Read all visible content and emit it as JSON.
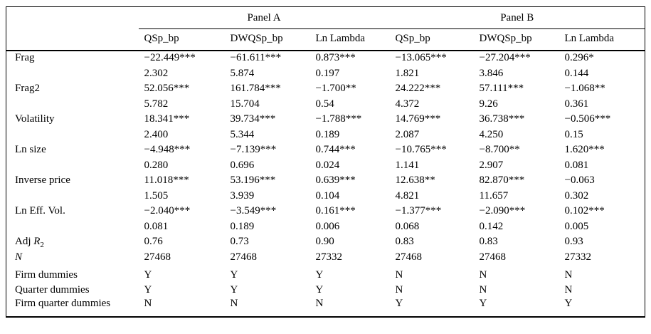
{
  "table": {
    "panels": [
      {
        "label": "Panel A"
      },
      {
        "label": "Panel B"
      }
    ],
    "columns": [
      "QSp_bp",
      "DWQSp_bp",
      "Ln Lambda",
      "QSp_bp",
      "DWQSp_bp",
      "Ln Lambda"
    ],
    "rows": [
      {
        "label_parts": [
          {
            "text": "Frag"
          }
        ],
        "cells": [
          "−22.449***",
          "−61.611***",
          "0.873***",
          "−13.065***",
          "−27.204***",
          "0.296*"
        ]
      },
      {
        "label_parts": [],
        "cells": [
          "2.302",
          "5.874",
          "0.197",
          "1.821",
          "3.846",
          "0.144"
        ]
      },
      {
        "label_parts": [
          {
            "text": "Frag2"
          }
        ],
        "cells": [
          "52.056***",
          "161.784***",
          "−1.700**",
          "24.222***",
          "57.111***",
          "−1.068**"
        ]
      },
      {
        "label_parts": [],
        "cells": [
          "5.782",
          "15.704",
          "0.54",
          "4.372",
          "9.26",
          "0.361"
        ]
      },
      {
        "label_parts": [
          {
            "text": "Volatility"
          }
        ],
        "cells": [
          "18.341***",
          "39.734***",
          "−1.788***",
          "14.769***",
          "36.738***",
          "−0.506***"
        ]
      },
      {
        "label_parts": [],
        "cells": [
          "2.400",
          "5.344",
          "0.189",
          "2.087",
          "4.250",
          "0.15"
        ]
      },
      {
        "label_parts": [
          {
            "text": "Ln size"
          }
        ],
        "cells": [
          "−4.948***",
          "−7.139***",
          "0.744***",
          "−10.765***",
          "−8.700**",
          "1.620***"
        ]
      },
      {
        "label_parts": [],
        "cells": [
          "0.280",
          "0.696",
          "0.024",
          "1.141",
          "2.907",
          "0.081"
        ]
      },
      {
        "label_parts": [
          {
            "text": "Inverse price"
          }
        ],
        "cells": [
          "11.018***",
          "53.196***",
          "0.639***",
          "12.638**",
          "82.870***",
          "−0.063"
        ]
      },
      {
        "label_parts": [],
        "cells": [
          "1.505",
          "3.939",
          "0.104",
          "4.821",
          "11.657",
          "0.302"
        ]
      },
      {
        "label_parts": [
          {
            "text": "Ln Eff. Vol."
          }
        ],
        "cells": [
          "−2.040***",
          "−3.549***",
          "0.161***",
          "−1.377***",
          "−2.090***",
          "0.102***"
        ]
      },
      {
        "label_parts": [],
        "cells": [
          "0.081",
          "0.189",
          "0.006",
          "0.068",
          "0.142",
          "0.005"
        ]
      },
      {
        "label_parts": [
          {
            "text": "Adj "
          },
          {
            "text": "R",
            "italic": true
          },
          {
            "text": "2",
            "sub": true
          }
        ],
        "cells": [
          "0.76",
          "0.73",
          "0.90",
          "0.83",
          "0.83",
          "0.93"
        ]
      },
      {
        "label_parts": [
          {
            "text": "N",
            "italic": true
          }
        ],
        "cells": [
          "27468",
          "27468",
          "27332",
          "27468",
          "27468",
          "27332"
        ]
      },
      {
        "label_parts": [
          {
            "text": "Firm dummies"
          }
        ],
        "gap_before": true,
        "cells": [
          "Y",
          "Y",
          "Y",
          "N",
          "N",
          "N"
        ]
      },
      {
        "label_parts": [
          {
            "text": "Quarter dummies"
          }
        ],
        "cells": [
          "Y",
          "Y",
          "Y",
          "N",
          "N",
          "N"
        ]
      },
      {
        "label_parts": [
          {
            "text": "Firm quarter dummies"
          }
        ],
        "cells": [
          "N",
          "N",
          "N",
          "Y",
          "Y",
          "Y"
        ]
      }
    ]
  }
}
